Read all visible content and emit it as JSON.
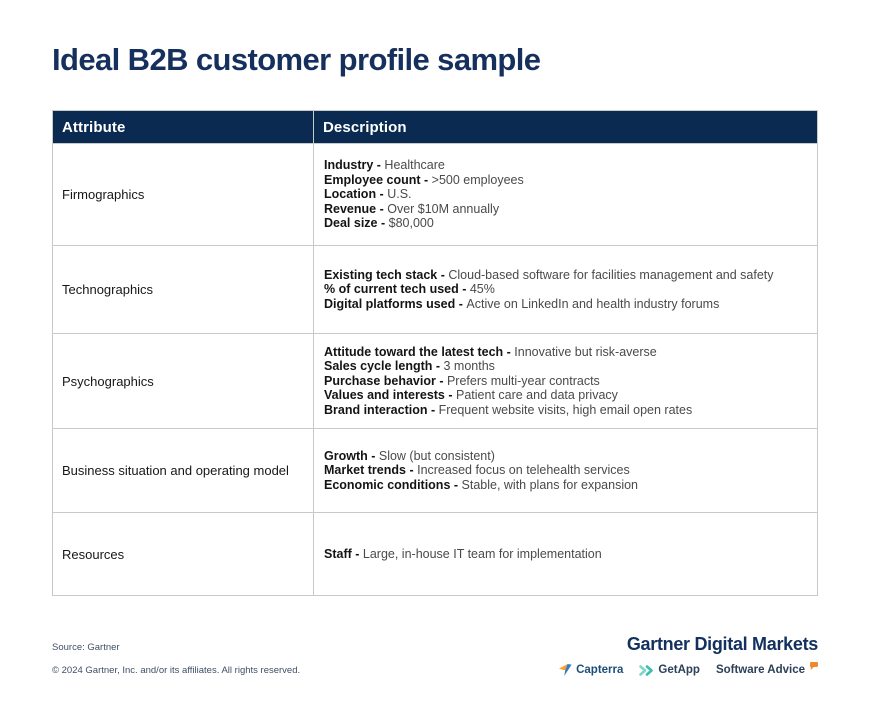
{
  "page": {
    "title": "Ideal B2B customer profile sample"
  },
  "table": {
    "headers": [
      "Attribute",
      "Description"
    ],
    "rows": [
      {
        "attribute": "Firmographics",
        "items": [
          {
            "label": "Industry",
            "value": "Healthcare"
          },
          {
            "label": "Employee count",
            "value": ">500 employees"
          },
          {
            "label": "Location",
            "value": "U.S."
          },
          {
            "label": "Revenue",
            "value": "Over $10M annually"
          },
          {
            "label": "Deal size",
            "value": "$80,000"
          }
        ]
      },
      {
        "attribute": "Technographics",
        "items": [
          {
            "label": "Existing tech stack",
            "value": "Cloud-based software for facilities management and safety"
          },
          {
            "label": "% of current tech used",
            "value": "45%"
          },
          {
            "label": "Digital platforms used",
            "value": "Active on LinkedIn and health industry forums"
          }
        ]
      },
      {
        "attribute": "Psychographics",
        "items": [
          {
            "label": "Attitude toward the latest tech",
            "value": "Innovative but risk-averse"
          },
          {
            "label": "Sales cycle length",
            "value": "3 months"
          },
          {
            "label": "Purchase behavior",
            "value": "Prefers multi-year contracts"
          },
          {
            "label": "Values and interests",
            "value": "Patient care and data privacy"
          },
          {
            "label": "Brand interaction",
            "value": "Frequent website visits, high email open rates"
          }
        ]
      },
      {
        "attribute": "Business situation and operating model",
        "items": [
          {
            "label": "Growth",
            "value": "Slow (but consistent)"
          },
          {
            "label": "Market trends",
            "value": "Increased focus on telehealth services"
          },
          {
            "label": "Economic conditions",
            "value": "Stable, with plans for expansion"
          }
        ]
      },
      {
        "attribute": "Resources",
        "items": [
          {
            "label": "Staff",
            "value": "Large, in-house IT team for implementation"
          }
        ]
      }
    ]
  },
  "footer": {
    "source": "Source: Gartner",
    "copyright": "© 2024 Gartner, Inc. and/or its affiliates. All rights reserved.",
    "brand": "Gartner Digital Markets",
    "logos": [
      {
        "name": "Capterra"
      },
      {
        "name": "GetApp"
      },
      {
        "name": "Software Advice"
      }
    ]
  },
  "colors": {
    "title_navy": "#16305e",
    "header_navy": "#0b2a52",
    "border_gray": "#c9c9c9",
    "body_text": "#4a4a4a",
    "label_text": "#141414",
    "footer_text": "#3f4f66",
    "capterra_orange": "#ff9d28",
    "capterra_blue": "#2f7fc0",
    "getapp_teal": "#3bbfad",
    "software_advice_orange": "#f0892c"
  }
}
